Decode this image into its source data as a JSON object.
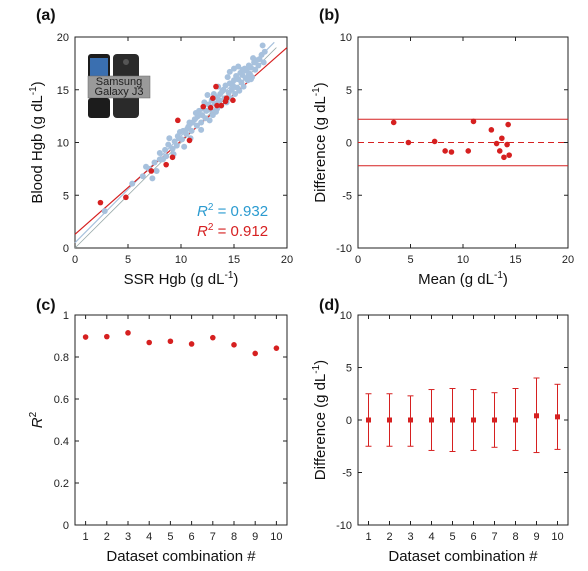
{
  "colors": {
    "red": "#d62020",
    "blue": "#a7c1dd",
    "darkblue": "#2a9bd0"
  },
  "chart_data": [
    {
      "panel": "(a)",
      "type": "scatter",
      "xlabel": "SSR Hgb (g dL",
      "ylabel": "Blood Hgb (g dL",
      "label_sup": "-1",
      "label_close": ")",
      "xlim": [
        0,
        20
      ],
      "ylim": [
        0,
        20
      ],
      "xticks": [
        "0",
        "5",
        "10",
        "15",
        "20"
      ],
      "yticks": [
        "0",
        "5",
        "10",
        "15",
        "20"
      ],
      "photo_text": [
        "Samsung",
        "Galaxy J3"
      ],
      "annotations": [
        {
          "r2_label": "R",
          "r2_sup": "2",
          "text": " = 0.932",
          "color": "blue_dark"
        },
        {
          "r2_label": "R",
          "r2_sup": "2",
          "text": " = 0.912",
          "color": "red"
        }
      ],
      "series": [
        {
          "style": "blue",
          "lines": "fit",
          "points": [
            [
              2.8,
              3.5
            ],
            [
              5.4,
              6.1
            ],
            [
              6.4,
              6.8
            ],
            [
              6.7,
              7.7
            ],
            [
              7.0,
              7.5
            ],
            [
              7.3,
              6.6
            ],
            [
              7.7,
              7.3
            ],
            [
              8.0,
              8.4
            ],
            [
              8.0,
              9.0
            ],
            [
              8.3,
              8.4
            ],
            [
              8.5,
              9.3
            ],
            [
              8.8,
              9.8
            ],
            [
              8.9,
              10.4
            ],
            [
              9.2,
              9.4
            ],
            [
              9.3,
              8.9
            ],
            [
              9.4,
              10.1
            ],
            [
              9.6,
              9.7
            ],
            [
              9.8,
              10.4
            ],
            [
              9.9,
              11.0
            ],
            [
              10.1,
              10.3
            ],
            [
              10.2,
              11.1
            ],
            [
              10.3,
              9.6
            ],
            [
              10.5,
              10.8
            ],
            [
              10.7,
              11.5
            ],
            [
              10.8,
              11.9
            ],
            [
              11.0,
              11.1
            ],
            [
              11.1,
              11.9
            ],
            [
              11.3,
              12.2
            ],
            [
              11.5,
              11.6
            ],
            [
              11.6,
              12.5
            ],
            [
              11.7,
              13.0
            ],
            [
              11.9,
              11.9
            ],
            [
              12.0,
              12.6
            ],
            [
              12.1,
              13.2
            ],
            [
              12.3,
              12.3
            ],
            [
              12.4,
              13.0
            ],
            [
              12.6,
              13.6
            ],
            [
              12.8,
              13.1
            ],
            [
              12.9,
              14.0
            ],
            [
              13.0,
              12.6
            ],
            [
              13.2,
              13.7
            ],
            [
              13.3,
              14.3
            ],
            [
              13.4,
              13.2
            ],
            [
              13.6,
              14.0
            ],
            [
              13.7,
              14.6
            ],
            [
              13.8,
              13.5
            ],
            [
              14.0,
              15.0
            ],
            [
              14.1,
              14.2
            ],
            [
              14.2,
              15.4
            ],
            [
              14.3,
              13.8
            ],
            [
              14.5,
              14.7
            ],
            [
              14.6,
              15.6
            ],
            [
              14.7,
              14.2
            ],
            [
              14.8,
              15.0
            ],
            [
              15.0,
              15.9
            ],
            [
              15.1,
              14.6
            ],
            [
              15.2,
              16.3
            ],
            [
              15.3,
              15.2
            ],
            [
              15.4,
              16.0
            ],
            [
              15.5,
              14.9
            ],
            [
              15.6,
              16.6
            ],
            [
              15.7,
              15.7
            ],
            [
              15.8,
              16.4
            ],
            [
              15.9,
              15.3
            ],
            [
              16.0,
              17.0
            ],
            [
              16.1,
              16.1
            ],
            [
              16.2,
              16.8
            ],
            [
              16.3,
              15.9
            ],
            [
              16.4,
              17.3
            ],
            [
              16.5,
              16.5
            ],
            [
              16.6,
              17.1
            ],
            [
              16.7,
              16.2
            ],
            [
              16.9,
              17.6
            ],
            [
              17.0,
              16.9
            ],
            [
              17.1,
              17.8
            ],
            [
              17.3,
              17.3
            ],
            [
              17.6,
              18.3
            ],
            [
              17.8,
              17.6
            ],
            [
              17.9,
              18.6
            ],
            [
              14.9,
              15.4
            ],
            [
              13.9,
              14.9
            ],
            [
              12.7,
              12.1
            ],
            [
              11.4,
              12.8
            ],
            [
              10.6,
              11.3
            ],
            [
              9.7,
              10.6
            ],
            [
              13.1,
              14.6
            ],
            [
              15.8,
              16.9
            ],
            [
              16.6,
              16.0
            ],
            [
              14.4,
              16.2
            ],
            [
              12.2,
              13.8
            ],
            [
              8.6,
              8.7
            ],
            [
              7.5,
              8.1
            ],
            [
              10.9,
              10.4
            ],
            [
              16.8,
              18.0
            ],
            [
              17.4,
              17.9
            ],
            [
              15.4,
              17.2
            ],
            [
              14.6,
              16.7
            ],
            [
              13.5,
              15.3
            ],
            [
              17.7,
              19.2
            ],
            [
              16.4,
              16.4
            ],
            [
              13.3,
              12.9
            ],
            [
              11.9,
              11.2
            ],
            [
              12.5,
              14.5
            ],
            [
              15.0,
              17.0
            ]
          ]
        },
        {
          "style": "red",
          "lines": "fit",
          "points": [
            [
              2.4,
              4.3
            ],
            [
              4.8,
              4.8
            ],
            [
              7.2,
              7.3
            ],
            [
              8.6,
              7.9
            ],
            [
              9.2,
              8.6
            ],
            [
              9.7,
              12.1
            ],
            [
              10.8,
              10.2
            ],
            [
              12.1,
              13.4
            ],
            [
              12.8,
              13.3
            ],
            [
              13.0,
              14.2
            ],
            [
              13.3,
              15.3
            ],
            [
              13.4,
              13.5
            ],
            [
              13.8,
              13.5
            ],
            [
              14.2,
              13.9
            ],
            [
              14.3,
              14.2
            ],
            [
              14.9,
              14.0
            ]
          ]
        }
      ]
    },
    {
      "panel": "(b)",
      "type": "scatter",
      "xlabel": "Mean (g dL",
      "ylabel": "Difference  (g dL",
      "label_sup": "-1",
      "label_close": ")",
      "xlim": [
        0,
        20
      ],
      "ylim": [
        -10,
        10
      ],
      "xticks": [
        "0",
        "5",
        "10",
        "15",
        "20"
      ],
      "yticks": [
        "-10",
        "-5",
        "0",
        "5",
        "10"
      ],
      "hlines": {
        "mean": 0.0,
        "upper": 2.2,
        "lower": -2.2
      },
      "series": [
        {
          "style": "red",
          "points": [
            [
              3.4,
              1.9
            ],
            [
              4.8,
              0.0
            ],
            [
              7.3,
              0.1
            ],
            [
              8.3,
              -0.8
            ],
            [
              8.9,
              -0.9
            ],
            [
              10.5,
              -0.8
            ],
            [
              11.0,
              2.0
            ],
            [
              12.7,
              1.2
            ],
            [
              13.2,
              -0.1
            ],
            [
              13.5,
              -0.8
            ],
            [
              13.7,
              0.4
            ],
            [
              13.9,
              -1.4
            ],
            [
              14.2,
              -0.2
            ],
            [
              14.3,
              1.7
            ],
            [
              14.4,
              -1.2
            ]
          ]
        }
      ]
    },
    {
      "panel": "(c)",
      "type": "scatter",
      "xlabel": "Dataset combination #",
      "ylabel": "R",
      "ylabel_sup": "2",
      "xlim": [
        0.5,
        10.5
      ],
      "ylim": [
        0,
        1
      ],
      "xticks": [
        "1",
        "2",
        "3",
        "4",
        "5",
        "6",
        "7",
        "8",
        "9",
        "10"
      ],
      "yticks": [
        "0",
        "0.2",
        "0.4",
        "0.6",
        "0.8",
        "1"
      ],
      "series": [
        {
          "style": "red",
          "x": [
            1,
            2,
            3,
            4,
            5,
            6,
            7,
            8,
            9,
            10
          ],
          "values": [
            0.895,
            0.897,
            0.915,
            0.869,
            0.875,
            0.862,
            0.892,
            0.858,
            0.817,
            0.842
          ]
        }
      ]
    },
    {
      "panel": "(d)",
      "type": "errorbar",
      "xlabel": "Dataset combination #",
      "ylabel": "Difference  (g dL",
      "label_sup": "-1",
      "label_close": ")",
      "xlim": [
        0.5,
        10.5
      ],
      "ylim": [
        -10,
        10
      ],
      "xticks": [
        "1",
        "2",
        "3",
        "4",
        "5",
        "6",
        "7",
        "8",
        "9",
        "10"
      ],
      "yticks": [
        "-10",
        "-5",
        "0",
        "5",
        "10"
      ],
      "series": [
        {
          "style": "red",
          "x": [
            1,
            2,
            3,
            4,
            5,
            6,
            7,
            8,
            9,
            10
          ],
          "values": [
            0.0,
            0.0,
            0.0,
            0.0,
            0.0,
            0.0,
            0.0,
            0.0,
            0.4,
            0.3
          ],
          "upper": [
            2.5,
            2.5,
            2.3,
            2.9,
            3.0,
            2.9,
            2.6,
            3.0,
            4.0,
            3.4
          ],
          "lower": [
            -2.5,
            -2.5,
            -2.5,
            -2.9,
            -3.0,
            -2.9,
            -2.6,
            -2.9,
            -3.1,
            -2.8
          ]
        }
      ]
    }
  ]
}
